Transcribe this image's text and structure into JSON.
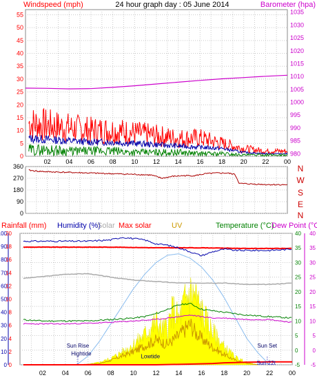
{
  "header": {
    "title": "24 hour graph day : 05 June 2014",
    "left_label": "Windspeed (mph)",
    "right_label": "Barometer (hpa)"
  },
  "colors": {
    "wind_gust": "#ff0000",
    "wind_avg": "#0000aa",
    "wind_low": "#008000",
    "barometer": "#cc00cc",
    "direction": "#aa0000",
    "rainfall": "#ff0000",
    "humidity": "#0000aa",
    "solar": "#aaaaaa",
    "max_solar": "#ff0000",
    "uv": "#cc9900",
    "temperature": "#008000",
    "dewpoint": "#cc00cc",
    "sun_curve": "#88bbee",
    "solar_fill": "#ffff00"
  },
  "x_ticks": [
    "02",
    "04",
    "06",
    "08",
    "10",
    "12",
    "14",
    "16",
    "18",
    "20",
    "22",
    "00"
  ],
  "chart_data": [
    {
      "type": "line",
      "y_ticks_left": [
        0,
        5,
        10,
        15,
        20,
        25,
        30,
        35,
        40,
        45,
        50,
        55
      ],
      "y_ticks_right": [
        980,
        985,
        990,
        995,
        1000,
        1005,
        1010,
        1015,
        1020,
        1025,
        1030,
        1035
      ],
      "ylim_left": [
        0,
        57
      ],
      "ylim_right": [
        979,
        1036
      ],
      "series": [
        {
          "name": "Windspeed",
          "axis": "left",
          "style": "gust",
          "x": [
            0,
            2,
            4,
            6,
            8,
            10,
            12,
            14,
            16,
            18,
            20,
            22,
            24
          ],
          "values": [
            13,
            12,
            11,
            10,
            10,
            9,
            8,
            7,
            7,
            5,
            3,
            2,
            2
          ]
        },
        {
          "axis": "left",
          "style": "avg",
          "x": [
            0,
            2,
            4,
            6,
            8,
            10,
            12,
            14,
            16,
            18,
            20,
            22,
            24
          ],
          "values": [
            7,
            6.5,
            6,
            5.5,
            5.5,
            5,
            4.5,
            4,
            3.5,
            3,
            1.5,
            1,
            1
          ]
        },
        {
          "axis": "left",
          "style": "low",
          "x": [
            0,
            2,
            4,
            6,
            8,
            10,
            12,
            14,
            16,
            18,
            20,
            22,
            24
          ],
          "values": [
            2.5,
            2.5,
            2,
            2,
            2,
            1.5,
            1.5,
            1.5,
            1,
            1,
            0.5,
            0.5,
            0.5
          ]
        },
        {
          "name": "Barometer",
          "axis": "right",
          "style": "line",
          "x": [
            0,
            2,
            4,
            6,
            8,
            10,
            12,
            14,
            16,
            18,
            20,
            22,
            24
          ],
          "values": [
            1005.5,
            1005.4,
            1005.2,
            1005.3,
            1005.8,
            1006.4,
            1007.1,
            1007.8,
            1008.5,
            1009.1,
            1009.6,
            1010.1,
            1010.5
          ]
        }
      ]
    },
    {
      "type": "line",
      "y_ticks": [
        0,
        90,
        180,
        270,
        360
      ],
      "ylim": [
        0,
        360
      ],
      "direction_labels": [
        "N",
        "W",
        "S",
        "E",
        "N"
      ],
      "series": [
        {
          "x": [
            0,
            1,
            2,
            4,
            6,
            8,
            10,
            11.5,
            12.5,
            13.5,
            14.5,
            15.5,
            16.5,
            17.5,
            18.5,
            19.2,
            19.6,
            21,
            22,
            24
          ],
          "values": [
            335,
            325,
            320,
            315,
            310,
            305,
            300,
            295,
            270,
            285,
            290,
            290,
            305,
            310,
            310,
            300,
            230,
            225,
            222,
            220
          ]
        }
      ]
    },
    {
      "type": "line",
      "legend": [
        "Rainfall (mm)",
        "Humidity (%)",
        "Solar",
        "Max solar",
        "UV",
        "Temperature (°C)",
        "Dew Point (°C)"
      ],
      "y_ticks_rain": [
        0,
        2,
        4,
        6,
        8,
        10,
        12,
        14,
        16,
        18,
        20
      ],
      "y_ticks_humidity": [
        0,
        10,
        20,
        30,
        40,
        50,
        60,
        70,
        80,
        90,
        100
      ],
      "y_ticks_temp": [
        -5,
        0,
        5,
        10,
        15,
        20,
        25,
        30,
        35,
        40
      ],
      "ylim_rain": [
        0,
        20
      ],
      "ylim_temp": [
        -5,
        40
      ],
      "series": [
        {
          "name": "Humidity",
          "unit": "%",
          "x": [
            0,
            2,
            4,
            6,
            8,
            9,
            10,
            11,
            12,
            13,
            14,
            15,
            16,
            17,
            18,
            19,
            20,
            22,
            24
          ],
          "values": [
            94,
            94,
            94,
            94,
            95,
            97,
            96,
            95,
            92,
            91,
            89,
            86,
            83,
            86,
            88,
            87,
            87,
            87,
            88
          ]
        },
        {
          "name": "Solar",
          "unit": "°C",
          "x": [
            0,
            2,
            4,
            6,
            8,
            10,
            12,
            14,
            16,
            18,
            20,
            22,
            24
          ],
          "values": [
            24.5,
            25.2,
            26,
            26.2,
            25,
            24,
            23.5,
            23,
            23,
            23,
            22.5,
            22.5,
            23
          ]
        },
        {
          "name": "Max solar",
          "unit": "mm",
          "x": [
            0,
            4,
            8,
            12,
            16,
            20,
            24
          ],
          "values": [
            17.9,
            17.9,
            17.9,
            17.8,
            17.8,
            17.7,
            17.7
          ]
        },
        {
          "name": "Temperature",
          "unit": "°C",
          "x": [
            0,
            2,
            4,
            6,
            8,
            10,
            11,
            12,
            13,
            14,
            15,
            16,
            17,
            18,
            20,
            22,
            24
          ],
          "values": [
            10.5,
            10,
            10,
            10,
            10.5,
            11,
            11.5,
            12.5,
            14,
            15.5,
            16,
            14,
            13.5,
            13,
            12,
            11.5,
            11
          ]
        },
        {
          "name": "Dew Point",
          "unit": "°C",
          "x": [
            0,
            2,
            4,
            6,
            8,
            10,
            12,
            13,
            14,
            15,
            16,
            17,
            18,
            20,
            22,
            24
          ],
          "values": [
            9,
            9,
            9,
            9.2,
            9.5,
            10,
            10.5,
            11,
            11.5,
            12,
            11.5,
            11,
            11,
            10.5,
            10.5,
            9.5
          ]
        },
        {
          "name": "Solar curve",
          "unit": "°C",
          "x": [
            5,
            6,
            7,
            8,
            9,
            10,
            11,
            12,
            13,
            14,
            15,
            16,
            17,
            18,
            19,
            20,
            21,
            22
          ],
          "values": [
            -5,
            -2,
            3,
            9,
            15,
            21,
            26,
            30,
            32.5,
            33,
            31.5,
            28.5,
            24,
            18,
            11,
            4,
            -1,
            -5
          ]
        },
        {
          "name": "Solar fill",
          "unit": "°C",
          "x": [
            5,
            6,
            7,
            8,
            9,
            10,
            11,
            12,
            12.5,
            13,
            13.5,
            14,
            14.5,
            15,
            15.5,
            16,
            16.5,
            17,
            18,
            19,
            20,
            21
          ],
          "values": [
            -5,
            -4.8,
            -4,
            -2.5,
            0,
            3,
            7,
            12,
            9,
            10,
            17,
            13,
            20,
            24,
            22,
            16,
            12,
            8,
            2,
            -2,
            -4,
            -5
          ]
        },
        {
          "name": "UV",
          "unit": "°C",
          "x": [
            5,
            7,
            8,
            9,
            10,
            11,
            12,
            13,
            14,
            14.5,
            15,
            15.5,
            16,
            17,
            18,
            19,
            20,
            21
          ],
          "values": [
            -5,
            -4.6,
            -3.5,
            -2,
            -0.5,
            1.5,
            3.5,
            2,
            5,
            7,
            9,
            6,
            4,
            1,
            -1.5,
            -3.5,
            -4.5,
            -5
          ]
        },
        {
          "name": "Rainfall",
          "unit": "mm",
          "x": [
            0,
            12,
            15,
            17,
            18,
            19,
            20,
            22,
            24
          ],
          "values": [
            0,
            0,
            0.1,
            0.2,
            0.3,
            0.35,
            0.4,
            0.45,
            0.45
          ]
        }
      ],
      "annotations": [
        {
          "label": "Sun Rise",
          "x": 5.1,
          "y": 0
        },
        {
          "label": "Hightide",
          "x": 5.4,
          "y": -1.8
        },
        {
          "label": "Lowtide",
          "x": 11.5,
          "y": -2.8
        },
        {
          "label": "Sun Set",
          "x": 21.8,
          "y": 0
        },
        {
          "label": "Sun 22t",
          "x": 21.7,
          "y": -5
        }
      ]
    }
  ]
}
